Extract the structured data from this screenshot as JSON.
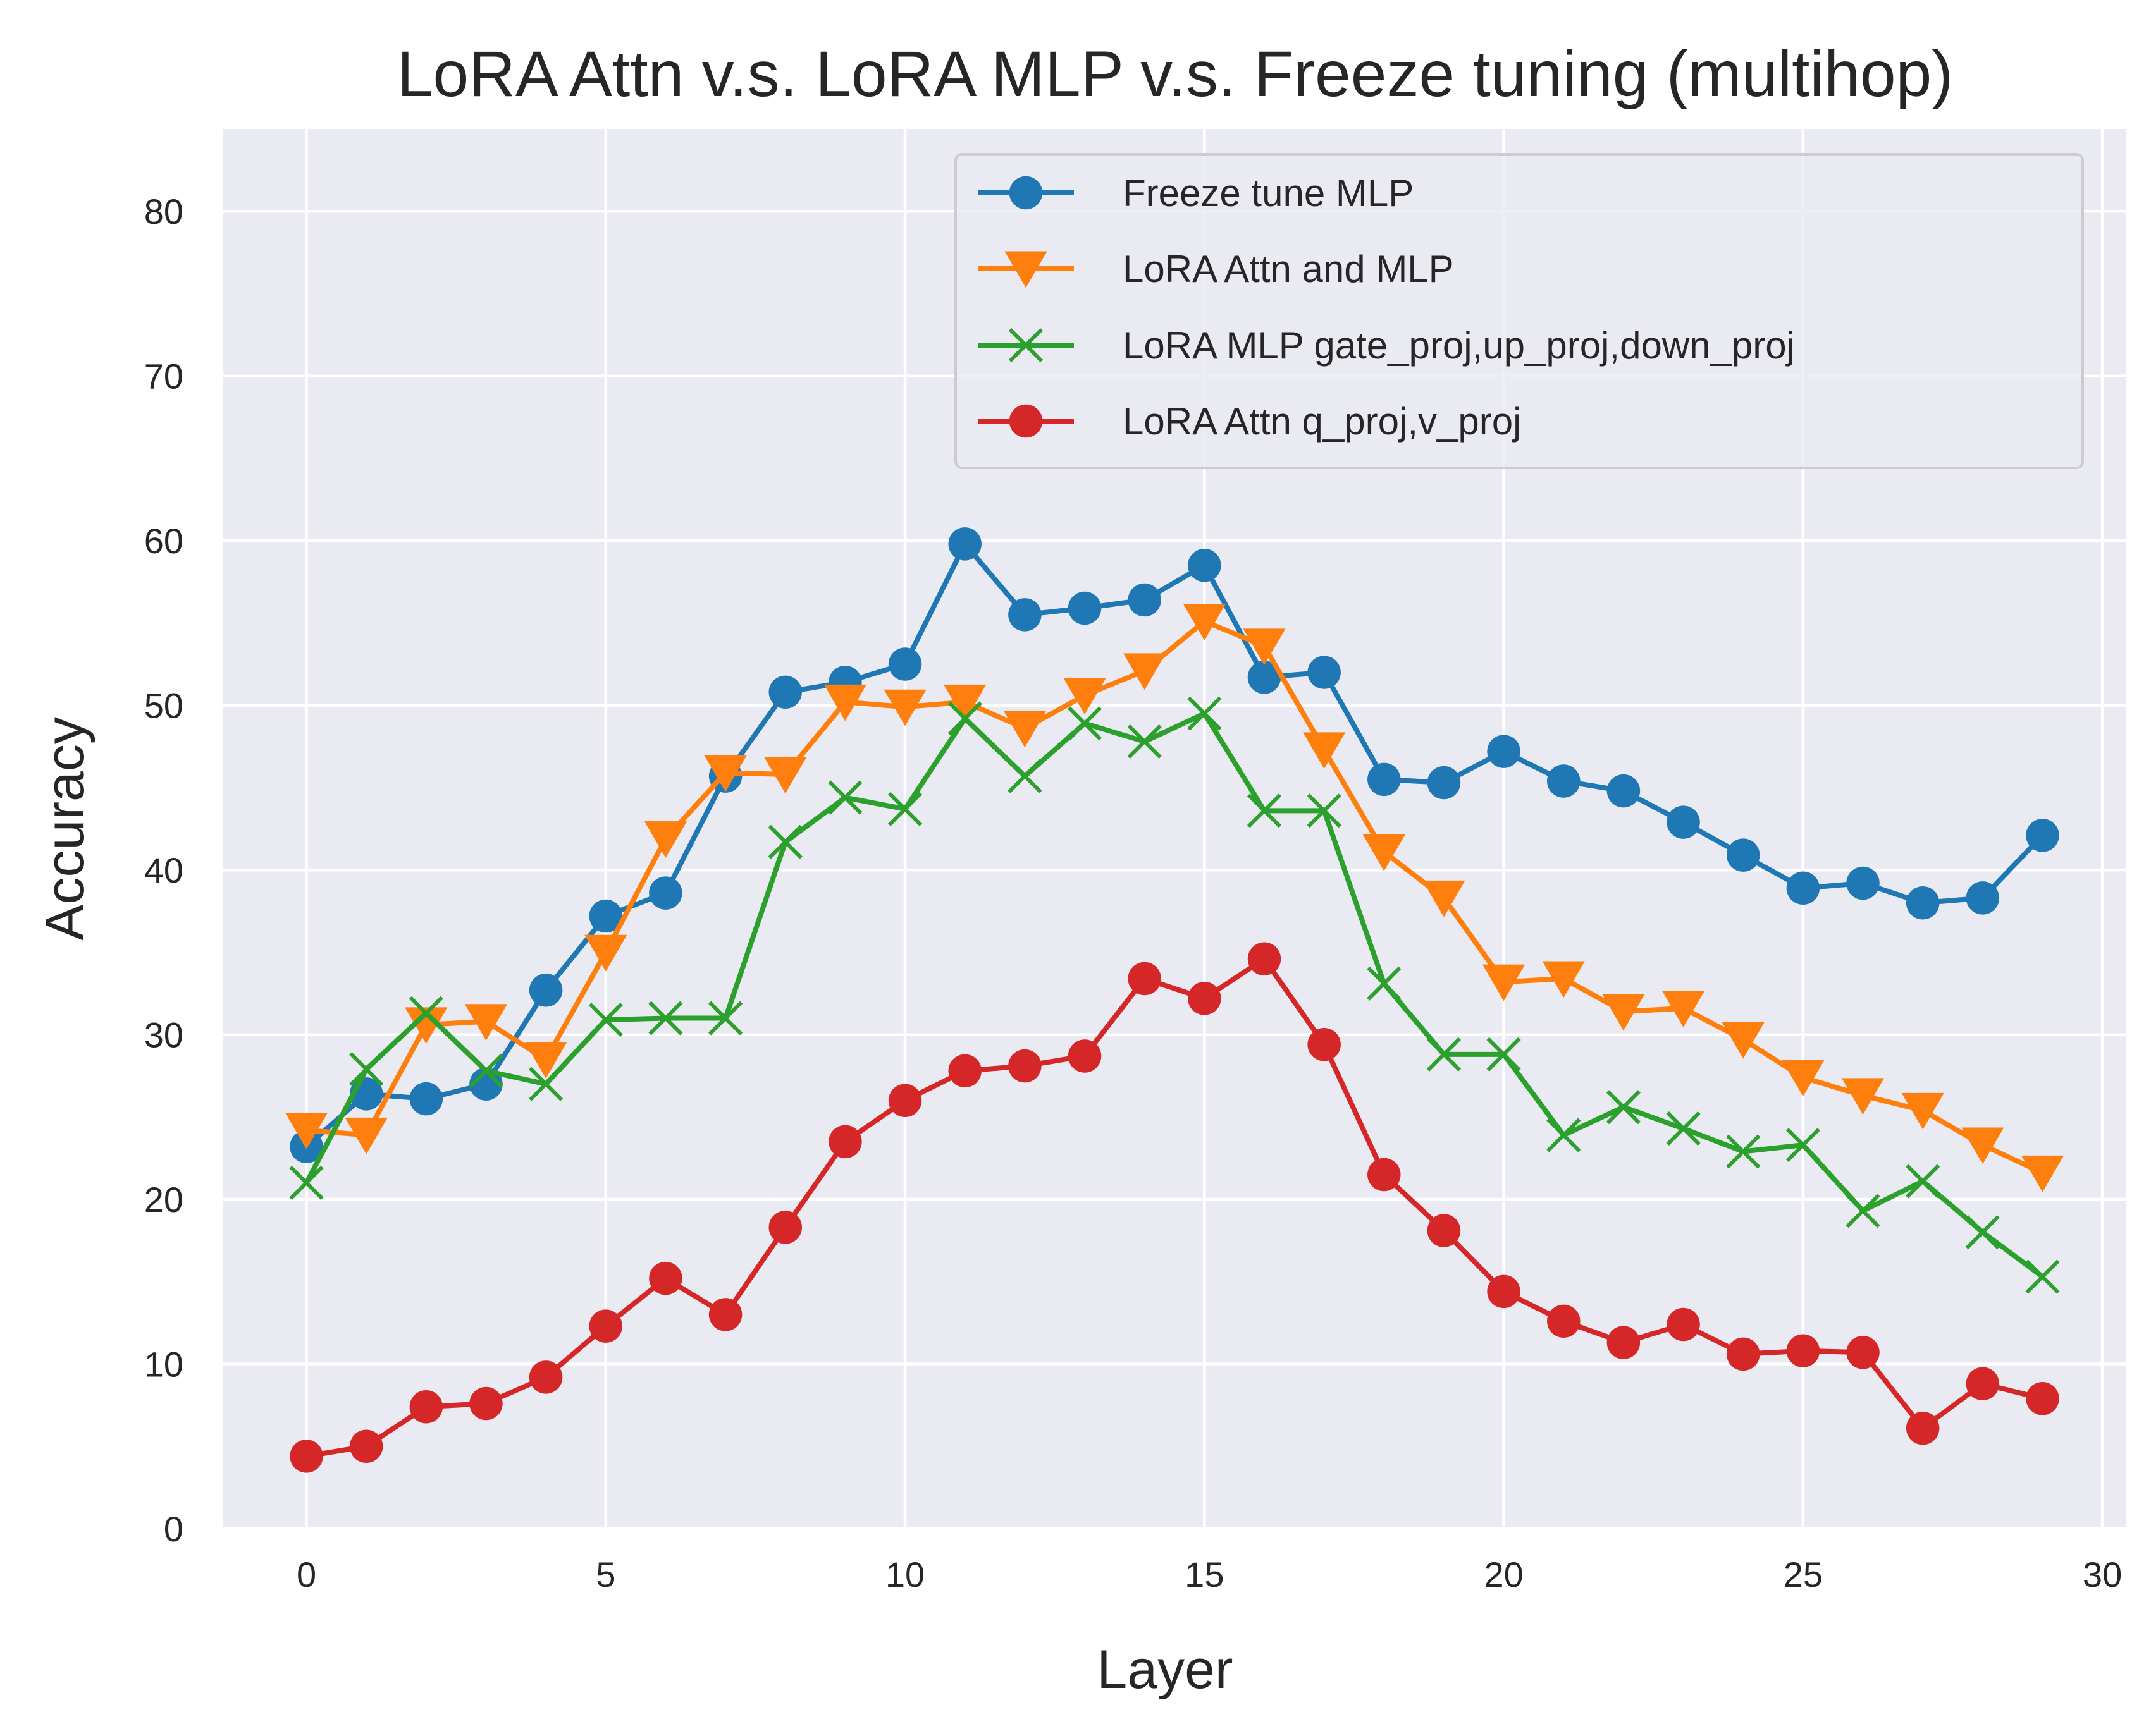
{
  "chart_data": {
    "type": "line",
    "title": "LoRA Attn v.s. LoRA MLP v.s. Freeze tuning (multihop)",
    "xlabel": "Layer",
    "ylabel": "Accuracy",
    "xlim": [
      -1.4,
      30.4
    ],
    "ylim": [
      0,
      85
    ],
    "xticks": [
      0,
      5,
      10,
      15,
      20,
      25,
      30
    ],
    "yticks": [
      0,
      10,
      20,
      30,
      40,
      50,
      60,
      70,
      80
    ],
    "grid": true,
    "legend_position": "top-right",
    "x": [
      0,
      1,
      2,
      3,
      4,
      5,
      6,
      7,
      8,
      9,
      10,
      11,
      12,
      13,
      14,
      15,
      16,
      17,
      18,
      19,
      20,
      21,
      22,
      23,
      24,
      25,
      26,
      27,
      28,
      29
    ],
    "series": [
      {
        "name": "Freeze tune MLP",
        "color": "#1f77b4",
        "marker": "circle",
        "values": [
          23.2,
          26.4,
          26.1,
          27.0,
          32.7,
          37.2,
          38.6,
          45.7,
          50.8,
          51.4,
          52.5,
          59.8,
          55.5,
          55.9,
          56.4,
          58.5,
          51.7,
          52.0,
          45.5,
          45.3,
          47.2,
          45.4,
          44.8,
          42.9,
          40.9,
          38.9,
          39.2,
          38.0,
          38.3,
          42.1
        ]
      },
      {
        "name": "LoRA Attn and MLP",
        "color": "#ff7f0e",
        "marker": "triangle-down",
        "values": [
          24.2,
          23.9,
          30.6,
          30.8,
          28.5,
          35.0,
          41.9,
          45.9,
          45.8,
          50.2,
          49.9,
          50.2,
          48.6,
          50.6,
          52.1,
          55.1,
          53.6,
          47.3,
          41.1,
          38.3,
          33.2,
          33.4,
          31.4,
          31.6,
          29.7,
          27.4,
          26.3,
          25.4,
          23.3,
          21.6
        ]
      },
      {
        "name": "LoRA MLP gate_proj,up_proj,down_proj",
        "color": "#2ca02c",
        "marker": "x",
        "values": [
          21.0,
          27.9,
          31.3,
          27.8,
          27.0,
          30.9,
          31.0,
          31.0,
          41.7,
          44.4,
          43.7,
          49.2,
          45.7,
          48.9,
          47.8,
          49.5,
          43.6,
          43.6,
          33.1,
          28.8,
          28.8,
          23.9,
          25.6,
          24.3,
          22.9,
          23.3,
          19.3,
          21.1,
          18.0,
          15.3
        ]
      },
      {
        "name": "LoRA Attn q_proj,v_proj",
        "color": "#d62728",
        "marker": "circle",
        "values": [
          4.4,
          5.0,
          7.4,
          7.6,
          9.2,
          12.3,
          15.2,
          13.0,
          18.3,
          23.5,
          26.0,
          27.8,
          28.1,
          28.7,
          33.4,
          32.2,
          34.6,
          29.4,
          21.5,
          18.1,
          14.4,
          12.6,
          11.3,
          12.4,
          10.6,
          10.8,
          10.7,
          6.1,
          8.8,
          7.9
        ]
      }
    ]
  }
}
